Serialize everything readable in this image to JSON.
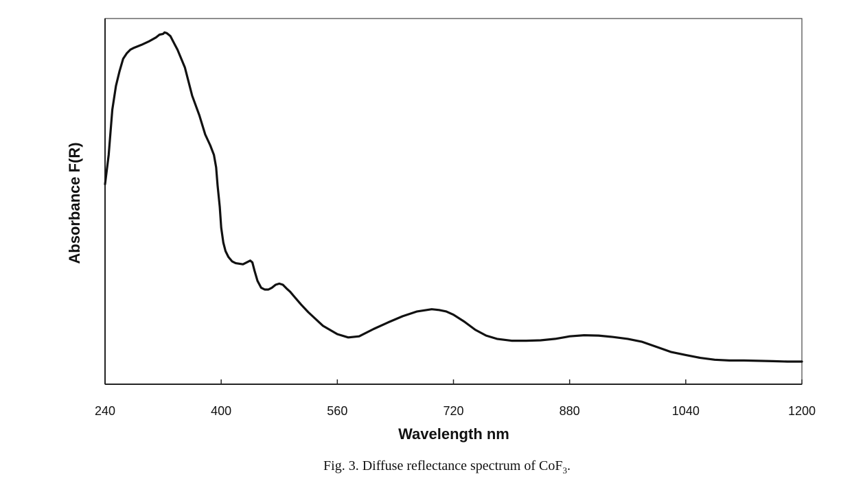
{
  "chart_data": {
    "type": "line",
    "xlabel": "Wavelength nm",
    "ylabel": "Absorbance F(R)",
    "xlim": [
      240,
      1200
    ],
    "ylim": [
      0,
      1
    ],
    "x_ticks": [
      "240",
      "400",
      "560",
      "720",
      "880",
      "1040",
      "1200"
    ],
    "y_tick_labels_shown": false,
    "grid": false,
    "legend": "none",
    "series": [
      {
        "x": [
          240,
          245,
          250,
          255,
          260,
          265,
          270,
          275,
          280,
          290,
          300,
          310,
          315,
          320,
          322,
          325,
          330,
          335,
          340,
          350,
          360,
          370,
          378,
          385,
          390,
          393,
          395,
          398,
          400,
          403,
          406,
          410,
          415,
          420,
          430,
          440,
          443,
          446,
          450,
          455,
          460,
          465,
          470,
          475,
          480,
          485,
          490,
          495,
          500,
          510,
          520,
          540,
          560,
          575,
          590,
          610,
          630,
          650,
          670,
          690,
          700,
          710,
          720,
          735,
          750,
          765,
          780,
          800,
          820,
          840,
          860,
          875,
          880,
          900,
          920,
          940,
          960,
          980,
          1000,
          1020,
          1040,
          1060,
          1080,
          1100,
          1120,
          1140,
          1160,
          1180,
          1200
        ],
        "y": [
          0.547,
          0.627,
          0.751,
          0.816,
          0.856,
          0.89,
          0.905,
          0.915,
          0.92,
          0.928,
          0.937,
          0.948,
          0.956,
          0.958,
          0.962,
          0.96,
          0.952,
          0.933,
          0.914,
          0.866,
          0.789,
          0.735,
          0.683,
          0.653,
          0.627,
          0.593,
          0.544,
          0.485,
          0.428,
          0.387,
          0.364,
          0.348,
          0.336,
          0.331,
          0.328,
          0.338,
          0.333,
          0.31,
          0.283,
          0.264,
          0.259,
          0.259,
          0.264,
          0.272,
          0.275,
          0.272,
          0.262,
          0.253,
          0.241,
          0.218,
          0.197,
          0.16,
          0.137,
          0.128,
          0.131,
          0.151,
          0.169,
          0.186,
          0.199,
          0.205,
          0.203,
          0.199,
          0.19,
          0.171,
          0.149,
          0.133,
          0.124,
          0.119,
          0.119,
          0.12,
          0.124,
          0.129,
          0.131,
          0.134,
          0.133,
          0.129,
          0.124,
          0.116,
          0.102,
          0.088,
          0.08,
          0.072,
          0.067,
          0.065,
          0.065,
          0.064,
          0.063,
          0.062,
          0.062
        ],
        "color": "#111111"
      }
    ],
    "caption": "Fig. 3. Diffuse reflectance spectrum of CoF",
    "caption_subscript": "3",
    "caption_end": "."
  }
}
